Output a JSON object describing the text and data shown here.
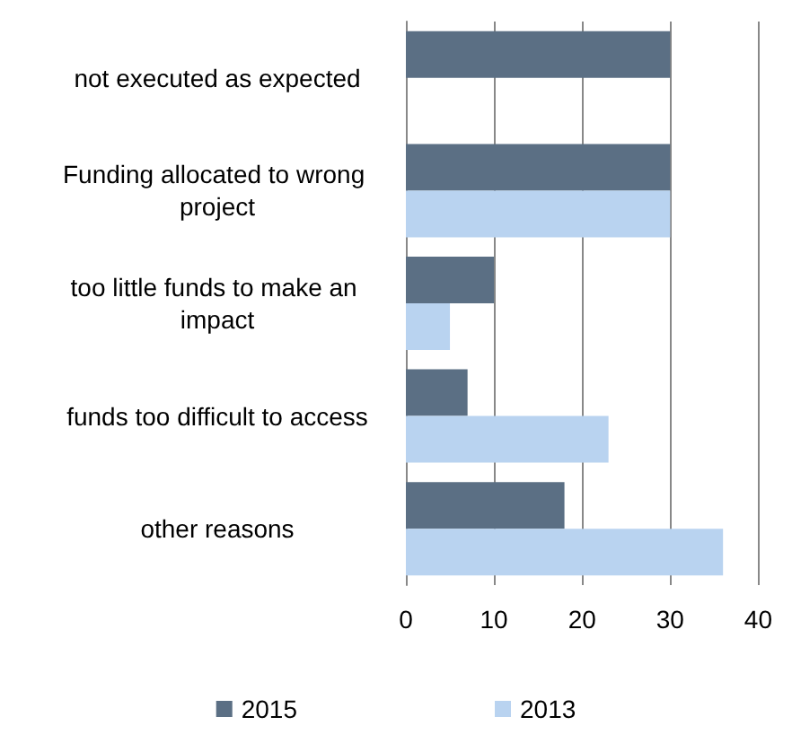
{
  "chart_data": {
    "type": "bar",
    "orientation": "horizontal",
    "categories": [
      "not executed as expected",
      "Funding allocated to wrong project",
      "too little funds to make an impact",
      "funds too difficult to access",
      "other reasons"
    ],
    "series": [
      {
        "name": "2015",
        "color": "#5b6f84",
        "values": [
          30,
          30,
          10,
          7,
          18
        ]
      },
      {
        "name": "2013",
        "color": "#b9d3f0",
        "values": [
          null,
          30,
          5,
          23,
          36
        ]
      }
    ],
    "xlim": [
      0,
      40
    ],
    "xticks": [
      0,
      10,
      20,
      30,
      40
    ],
    "grid": "x",
    "legend": "bottom"
  }
}
